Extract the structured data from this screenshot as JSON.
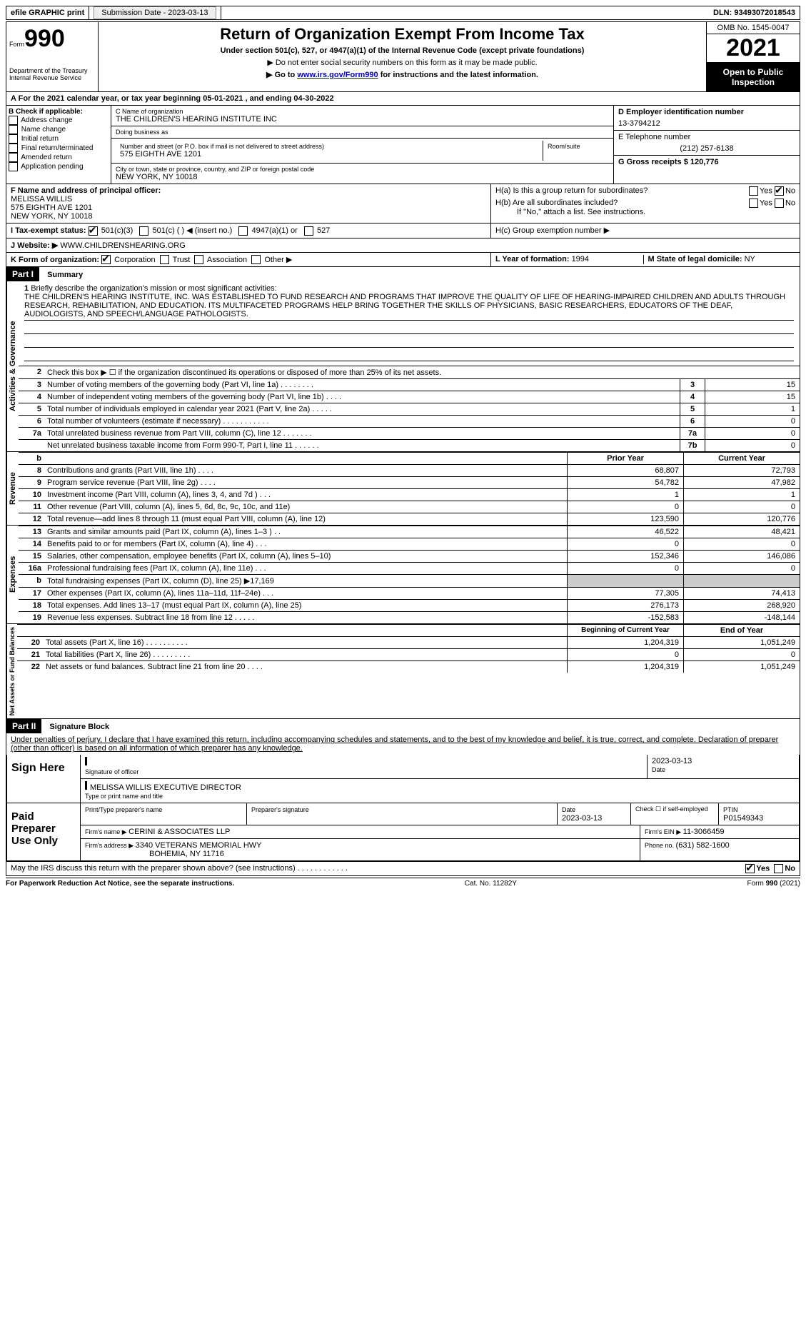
{
  "top": {
    "efile": "efile GRAPHIC print",
    "submission_label": "Submission Date - ",
    "submission_date": "2023-03-13",
    "dln_label": "DLN: ",
    "dln": "93493072018543"
  },
  "header": {
    "form_word": "Form",
    "form_num": "990",
    "dept": "Department of the Treasury",
    "irs": "Internal Revenue Service",
    "title": "Return of Organization Exempt From Income Tax",
    "sub1": "Under section 501(c), 527, or 4947(a)(1) of the Internal Revenue Code (except private foundations)",
    "sub2": "▶ Do not enter social security numbers on this form as it may be made public.",
    "sub3_pre": "▶ Go to ",
    "sub3_link": "www.irs.gov/Form990",
    "sub3_post": " for instructions and the latest information.",
    "omb": "OMB No. 1545-0047",
    "year": "2021",
    "open": "Open to Public Inspection"
  },
  "A": {
    "text": "For the 2021 calendar year, or tax year beginning ",
    "begin": "05-01-2021",
    "mid": " , and ending ",
    "end": "04-30-2022"
  },
  "B": {
    "label": "B Check if applicable:",
    "opts": [
      "Address change",
      "Name change",
      "Initial return",
      "Final return/terminated",
      "Amended return",
      "Application pending"
    ]
  },
  "C": {
    "name_label": "C Name of organization",
    "name": "THE CHILDREN'S HEARING INSTITUTE INC",
    "dba_label": "Doing business as",
    "dba": "",
    "street_label": "Number and street (or P.O. box if mail is not delivered to street address)",
    "street": "575 EIGHTH AVE 1201",
    "room_label": "Room/suite",
    "room": "",
    "city_label": "City or town, state or province, country, and ZIP or foreign postal code",
    "city": "NEW YORK, NY  10018"
  },
  "D": {
    "label": "D Employer identification number",
    "value": "13-3794212"
  },
  "E": {
    "label": "E Telephone number",
    "value": "(212) 257-6138"
  },
  "G": {
    "label": "G Gross receipts $ ",
    "value": "120,776"
  },
  "F": {
    "label": "F  Name and address of principal officer:",
    "name": "MELISSA WILLIS",
    "street": "575 EIGHTH AVE 1201",
    "city": "NEW YORK, NY  10018"
  },
  "H": {
    "a": "H(a)  Is this a group return for subordinates?",
    "b": "H(b)  Are all subordinates included?",
    "b_note": "If \"No,\" attach a list. See instructions.",
    "c": "H(c)  Group exemption number ▶",
    "yes": "Yes",
    "no": "No"
  },
  "I": {
    "label": "I  Tax-exempt status:",
    "opts": [
      "501(c)(3)",
      "501(c) (   ) ◀ (insert no.)",
      "4947(a)(1) or",
      "527"
    ]
  },
  "J": {
    "label": "J  Website: ▶",
    "value": "WWW.CHILDRENSHEARING.ORG"
  },
  "K": {
    "label": "K Form of organization:",
    "opts": [
      "Corporation",
      "Trust",
      "Association",
      "Other ▶"
    ]
  },
  "L": {
    "label": "L Year of formation: ",
    "value": "1994"
  },
  "M": {
    "label": "M State of legal domicile: ",
    "value": "NY"
  },
  "part1": {
    "title": "Part I",
    "name": "Summary",
    "line1_label": "1",
    "line1_text": "Briefly describe the organization's mission or most significant activities:",
    "mission": "THE CHILDREN'S HEARING INSTITUTE, INC. WAS ESTABLISHED TO FUND RESEARCH AND PROGRAMS THAT IMPROVE THE QUALITY OF LIFE OF HEARING-IMPAIRED CHILDREN AND ADULTS THROUGH RESEARCH, REHABILITATION, AND EDUCATION. ITS MULTIFACETED PROGRAMS HELP BRING TOGETHER THE SKILLS OF PHYSICIANS, BASIC RESEARCHERS, EDUCATORS OF THE DEAF, AUDIOLOGISTS, AND SPEECH/LANGUAGE PATHOLOGISTS.",
    "line2": "Check this box ▶ ☐  if the organization discontinued its operations or disposed of more than 25% of its net assets.",
    "gov": [
      {
        "n": "3",
        "d": "Number of voting members of the governing body (Part VI, line 1a)  .   .   .   .   .   .   .   .",
        "b": "3",
        "v": "15"
      },
      {
        "n": "4",
        "d": "Number of independent voting members of the governing body (Part VI, line 1b)   .   .   .   .",
        "b": "4",
        "v": "15"
      },
      {
        "n": "5",
        "d": "Total number of individuals employed in calendar year 2021 (Part V, line 2a)   .   .   .   .   .",
        "b": "5",
        "v": "1"
      },
      {
        "n": "6",
        "d": "Total number of volunteers (estimate if necessary)   .   .   .   .   .   .   .   .   .   .   .",
        "b": "6",
        "v": "0"
      },
      {
        "n": "7a",
        "d": "Total unrelated business revenue from Part VIII, column (C), line 12   .   .   .   .   .   .   .",
        "b": "7a",
        "v": "0"
      },
      {
        "n": "",
        "d": "Net unrelated business taxable income from Form 990-T, Part I, line 11   .   .   .   .   .   .",
        "b": "7b",
        "v": "0"
      }
    ],
    "rev_head_prior": "Prior Year",
    "rev_head_curr": "Current Year",
    "revenue": [
      {
        "n": "8",
        "d": "Contributions and grants (Part VIII, line 1h)   .   .   .   .",
        "p": "68,807",
        "c": "72,793"
      },
      {
        "n": "9",
        "d": "Program service revenue (Part VIII, line 2g)   .   .   .   .",
        "p": "54,782",
        "c": "47,982"
      },
      {
        "n": "10",
        "d": "Investment income (Part VIII, column (A), lines 3, 4, and 7d )   .   .   .",
        "p": "1",
        "c": "1"
      },
      {
        "n": "11",
        "d": "Other revenue (Part VIII, column (A), lines 5, 6d, 8c, 9c, 10c, and 11e)",
        "p": "0",
        "c": "0"
      },
      {
        "n": "12",
        "d": "Total revenue—add lines 8 through 11 (must equal Part VIII, column (A), line 12)",
        "p": "123,590",
        "c": "120,776"
      }
    ],
    "expenses": [
      {
        "n": "13",
        "d": "Grants and similar amounts paid (Part IX, column (A), lines 1–3 )   .   .",
        "p": "46,522",
        "c": "48,421"
      },
      {
        "n": "14",
        "d": "Benefits paid to or for members (Part IX, column (A), line 4)   .   .   .",
        "p": "0",
        "c": "0"
      },
      {
        "n": "15",
        "d": "Salaries, other compensation, employee benefits (Part IX, column (A), lines 5–10)",
        "p": "152,346",
        "c": "146,086"
      },
      {
        "n": "16a",
        "d": "Professional fundraising fees (Part IX, column (A), line 11e)   .   .   .",
        "p": "0",
        "c": "0"
      },
      {
        "n": "b",
        "d": "Total fundraising expenses (Part IX, column (D), line 25) ▶17,169",
        "p": "",
        "c": "",
        "shade": true
      },
      {
        "n": "17",
        "d": "Other expenses (Part IX, column (A), lines 11a–11d, 11f–24e)   .   .   .",
        "p": "77,305",
        "c": "74,413"
      },
      {
        "n": "18",
        "d": "Total expenses. Add lines 13–17 (must equal Part IX, column (A), line 25)",
        "p": "276,173",
        "c": "268,920"
      },
      {
        "n": "19",
        "d": "Revenue less expenses. Subtract line 18 from line 12   .   .   .   .   .",
        "p": "-152,583",
        "c": "-148,144"
      }
    ],
    "na_head_prior": "Beginning of Current Year",
    "na_head_curr": "End of Year",
    "netassets": [
      {
        "n": "20",
        "d": "Total assets (Part X, line 16)   .   .   .   .   .   .   .   .   .   .",
        "p": "1,204,319",
        "c": "1,051,249"
      },
      {
        "n": "21",
        "d": "Total liabilities (Part X, line 26)   .   .   .   .   .   .   .   .   .",
        "p": "0",
        "c": "0"
      },
      {
        "n": "22",
        "d": "Net assets or fund balances. Subtract line 21 from line 20   .   .   .   .",
        "p": "1,204,319",
        "c": "1,051,249"
      }
    ],
    "vert_gov": "Activities & Governance",
    "vert_rev": "Revenue",
    "vert_exp": "Expenses",
    "vert_na": "Net Assets or Fund Balances"
  },
  "part2": {
    "title": "Part II",
    "name": "Signature Block",
    "decl": "Under penalties of perjury, I declare that I have examined this return, including accompanying schedules and statements, and to the best of my knowledge and belief, it is true, correct, and complete. Declaration of preparer (other than officer) is based on all information of which preparer has any knowledge.",
    "sign_here": "Sign Here",
    "sig_officer": "Signature of officer",
    "sig_date": "2023-03-13",
    "date_label": "Date",
    "officer_name": "MELISSA WILLIS  EXECUTIVE DIRECTOR",
    "officer_label": "Type or print name and title",
    "paid": "Paid Preparer Use Only",
    "prep_name_label": "Print/Type preparer's name",
    "prep_name": "",
    "prep_sig_label": "Preparer's signature",
    "prep_date_label": "Date",
    "prep_date": "2023-03-13",
    "self_emp": "Check ☐ if self-employed",
    "ptin_label": "PTIN",
    "ptin": "P01549343",
    "firm_name_label": "Firm's name      ▶ ",
    "firm_name": "CERINI & ASSOCIATES LLP",
    "firm_ein_label": "Firm's EIN ▶ ",
    "firm_ein": "11-3066459",
    "firm_addr_label": "Firm's address ▶ ",
    "firm_addr1": "3340 VETERANS MEMORIAL HWY",
    "firm_addr2": "BOHEMIA, NY  11716",
    "phone_label": "Phone no. ",
    "phone": "(631) 582-1600",
    "discuss": "May the IRS discuss this return with the preparer shown above? (see instructions)   .   .   .   .   .   .   .   .   .   .   .   .",
    "discuss_yes": "Yes",
    "discuss_no": "No"
  },
  "footer": {
    "left": "For Paperwork Reduction Act Notice, see the separate instructions.",
    "mid": "Cat. No. 11282Y",
    "right_a": "Form ",
    "right_b": "990",
    "right_c": " (2021)"
  }
}
